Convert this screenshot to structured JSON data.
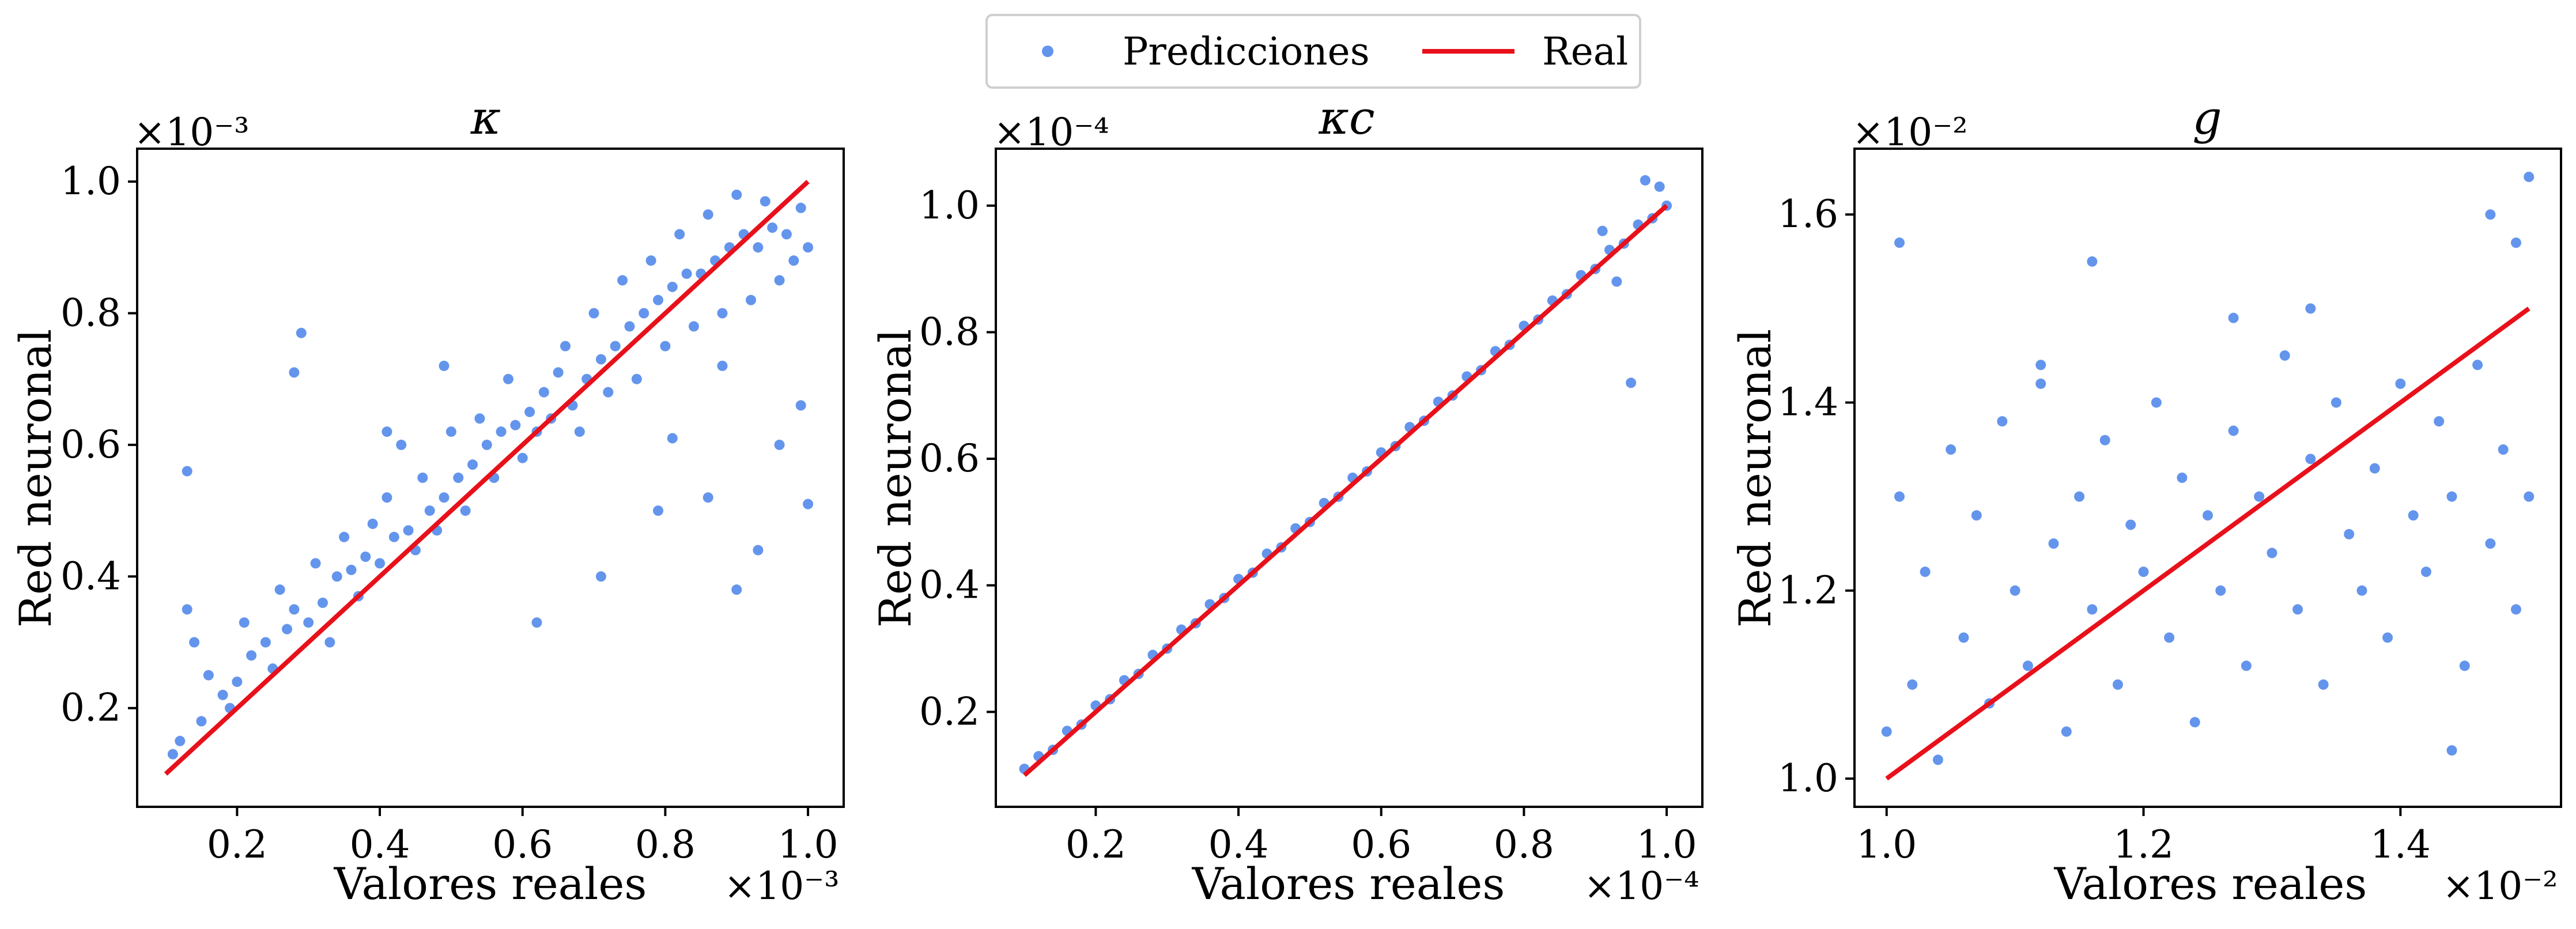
{
  "legend": {
    "items": [
      {
        "label": "Predicciones",
        "marker": "dot",
        "color": "#6495ED"
      },
      {
        "label": "Real",
        "marker": "line",
        "color": "#E8101A"
      }
    ]
  },
  "colors": {
    "prediction": "#6495ED",
    "reference": "#E8101A",
    "axes": "#000000"
  },
  "chart_data": [
    {
      "type": "scatter",
      "title": "κ",
      "xlabel": "Valores reales",
      "ylabel": "Red neuronal",
      "x_exponent": "×10⁻³",
      "y_exponent": "×10⁻³",
      "xlim": [
        0.06,
        1.05
      ],
      "ylim": [
        0.05,
        1.05
      ],
      "xticks": [
        0.2,
        0.4,
        0.6,
        0.8,
        1.0
      ],
      "xtick_labels": [
        "0.2",
        "0.4",
        "0.6",
        "0.8",
        "1.0"
      ],
      "yticks": [
        0.2,
        0.4,
        0.6,
        0.8,
        1.0
      ],
      "ytick_labels": [
        "0.2",
        "0.4",
        "0.6",
        "0.8",
        "1.0"
      ],
      "grid": false,
      "series": [
        {
          "name": "Predicciones",
          "kind": "scatter",
          "color": "#6495ED",
          "x": [
            0.11,
            0.13,
            0.12,
            0.15,
            0.16,
            0.18,
            0.14,
            0.2,
            0.19,
            0.22,
            0.24,
            0.21,
            0.25,
            0.27,
            0.28,
            0.26,
            0.3,
            0.32,
            0.31,
            0.34,
            0.33,
            0.36,
            0.35,
            0.38,
            0.37,
            0.4,
            0.39,
            0.42,
            0.41,
            0.44,
            0.45,
            0.43,
            0.47,
            0.46,
            0.49,
            0.48,
            0.51,
            0.5,
            0.53,
            0.52,
            0.55,
            0.54,
            0.57,
            0.56,
            0.59,
            0.58,
            0.61,
            0.6,
            0.63,
            0.62,
            0.65,
            0.64,
            0.67,
            0.66,
            0.69,
            0.68,
            0.71,
            0.7,
            0.73,
            0.72,
            0.75,
            0.74,
            0.77,
            0.76,
            0.79,
            0.78,
            0.81,
            0.8,
            0.83,
            0.82,
            0.85,
            0.84,
            0.87,
            0.86,
            0.89,
            0.88,
            0.91,
            0.9,
            0.93,
            0.92,
            0.95,
            0.94,
            0.97,
            0.96,
            0.99,
            0.98,
            1.0,
            0.13,
            0.29,
            0.28,
            0.41,
            0.49,
            0.62,
            0.71,
            0.79,
            0.86,
            0.9,
            0.93,
            0.96,
            0.99,
            1.0,
            0.88,
            0.81
          ],
          "y": [
            0.13,
            0.35,
            0.15,
            0.18,
            0.25,
            0.22,
            0.3,
            0.24,
            0.2,
            0.28,
            0.3,
            0.33,
            0.26,
            0.32,
            0.35,
            0.38,
            0.33,
            0.36,
            0.42,
            0.4,
            0.3,
            0.41,
            0.46,
            0.43,
            0.37,
            0.42,
            0.48,
            0.46,
            0.52,
            0.47,
            0.44,
            0.6,
            0.5,
            0.55,
            0.52,
            0.47,
            0.55,
            0.62,
            0.57,
            0.5,
            0.6,
            0.64,
            0.62,
            0.55,
            0.63,
            0.7,
            0.65,
            0.58,
            0.68,
            0.62,
            0.71,
            0.64,
            0.66,
            0.75,
            0.7,
            0.62,
            0.73,
            0.8,
            0.75,
            0.68,
            0.78,
            0.85,
            0.8,
            0.7,
            0.82,
            0.88,
            0.84,
            0.75,
            0.86,
            0.92,
            0.86,
            0.78,
            0.88,
            0.95,
            0.9,
            0.8,
            0.92,
            0.98,
            0.9,
            0.82,
            0.93,
            0.97,
            0.92,
            0.85,
            0.96,
            0.88,
            0.9,
            0.56,
            0.77,
            0.71,
            0.62,
            0.72,
            0.33,
            0.4,
            0.5,
            0.52,
            0.38,
            0.44,
            0.6,
            0.66,
            0.51,
            0.72,
            0.61
          ]
        },
        {
          "name": "Real",
          "kind": "line",
          "color": "#E8101A",
          "x": [
            0.1,
            1.0
          ],
          "y": [
            0.1,
            1.0
          ]
        }
      ]
    },
    {
      "type": "scatter",
      "title": "κc",
      "xlabel": "Valores reales",
      "ylabel": "Red neuronal",
      "x_exponent": "×10⁻⁴",
      "y_exponent": "×10⁻⁴",
      "xlim": [
        0.06,
        1.05
      ],
      "ylim": [
        0.05,
        1.09
      ],
      "xticks": [
        0.2,
        0.4,
        0.6,
        0.8,
        1.0
      ],
      "xtick_labels": [
        "0.2",
        "0.4",
        "0.6",
        "0.8",
        "1.0"
      ],
      "yticks": [
        0.2,
        0.4,
        0.6,
        0.8,
        1.0
      ],
      "ytick_labels": [
        "0.2",
        "0.4",
        "0.6",
        "0.8",
        "1.0"
      ],
      "grid": false,
      "series": [
        {
          "name": "Predicciones",
          "kind": "scatter",
          "color": "#6495ED",
          "x": [
            0.1,
            0.12,
            0.14,
            0.16,
            0.18,
            0.2,
            0.22,
            0.24,
            0.26,
            0.28,
            0.3,
            0.32,
            0.34,
            0.36,
            0.38,
            0.4,
            0.42,
            0.44,
            0.46,
            0.48,
            0.5,
            0.52,
            0.54,
            0.56,
            0.58,
            0.6,
            0.62,
            0.64,
            0.66,
            0.68,
            0.7,
            0.72,
            0.74,
            0.76,
            0.78,
            0.8,
            0.82,
            0.84,
            0.86,
            0.88,
            0.9,
            0.92,
            0.94,
            0.96,
            0.98,
            1.0,
            0.95,
            0.97,
            0.99,
            0.93,
            0.91
          ],
          "y": [
            0.11,
            0.13,
            0.14,
            0.17,
            0.18,
            0.21,
            0.22,
            0.25,
            0.26,
            0.29,
            0.3,
            0.33,
            0.34,
            0.37,
            0.38,
            0.41,
            0.42,
            0.45,
            0.46,
            0.49,
            0.5,
            0.53,
            0.54,
            0.57,
            0.58,
            0.61,
            0.62,
            0.65,
            0.66,
            0.69,
            0.7,
            0.73,
            0.74,
            0.77,
            0.78,
            0.81,
            0.82,
            0.85,
            0.86,
            0.89,
            0.9,
            0.93,
            0.94,
            0.97,
            0.98,
            1.0,
            0.72,
            1.04,
            1.03,
            0.88,
            0.96
          ]
        },
        {
          "name": "Real",
          "kind": "line",
          "color": "#E8101A",
          "x": [
            0.1,
            1.0
          ],
          "y": [
            0.1,
            1.0
          ]
        }
      ]
    },
    {
      "type": "scatter",
      "title": "g",
      "xlabel": "Valores reales",
      "ylabel": "Red neuronal",
      "x_exponent": "×10⁻²",
      "y_exponent": "×10⁻²",
      "xlim": [
        0.975,
        1.525
      ],
      "ylim": [
        0.97,
        1.67
      ],
      "xticks": [
        1.0,
        1.2,
        1.4
      ],
      "xtick_labels": [
        "1.0",
        "1.2",
        "1.4"
      ],
      "yticks": [
        1.0,
        1.2,
        1.4,
        1.6
      ],
      "ytick_labels": [
        "1.0",
        "1.2",
        "1.4",
        "1.6"
      ],
      "grid": false,
      "series": [
        {
          "name": "Predicciones",
          "kind": "scatter",
          "color": "#6495ED",
          "x": [
            1.0,
            1.01,
            1.02,
            1.03,
            1.04,
            1.05,
            1.06,
            1.07,
            1.08,
            1.09,
            1.1,
            1.11,
            1.12,
            1.13,
            1.14,
            1.15,
            1.16,
            1.17,
            1.18,
            1.19,
            1.2,
            1.21,
            1.22,
            1.23,
            1.24,
            1.25,
            1.26,
            1.27,
            1.28,
            1.29,
            1.3,
            1.31,
            1.32,
            1.33,
            1.34,
            1.35,
            1.36,
            1.37,
            1.38,
            1.39,
            1.4,
            1.41,
            1.42,
            1.43,
            1.44,
            1.45,
            1.46,
            1.47,
            1.48,
            1.49,
            1.5,
            1.01,
            1.16,
            1.47,
            1.5,
            1.49,
            1.44,
            1.12,
            1.33,
            1.27
          ],
          "y": [
            1.05,
            1.3,
            1.1,
            1.22,
            1.02,
            1.35,
            1.15,
            1.28,
            1.08,
            1.38,
            1.2,
            1.12,
            1.42,
            1.25,
            1.05,
            1.3,
            1.18,
            1.36,
            1.1,
            1.27,
            1.22,
            1.4,
            1.15,
            1.32,
            1.06,
            1.28,
            1.2,
            1.37,
            1.12,
            1.3,
            1.24,
            1.45,
            1.18,
            1.34,
            1.1,
            1.4,
            1.26,
            1.2,
            1.33,
            1.15,
            1.42,
            1.28,
            1.22,
            1.38,
            1.3,
            1.12,
            1.44,
            1.25,
            1.35,
            1.18,
            1.3,
            1.57,
            1.55,
            1.6,
            1.64,
            1.57,
            1.03,
            1.44,
            1.5,
            1.49
          ]
        },
        {
          "name": "Real",
          "kind": "line",
          "color": "#E8101A",
          "x": [
            1.0,
            1.5
          ],
          "y": [
            1.0,
            1.5
          ]
        }
      ]
    }
  ]
}
